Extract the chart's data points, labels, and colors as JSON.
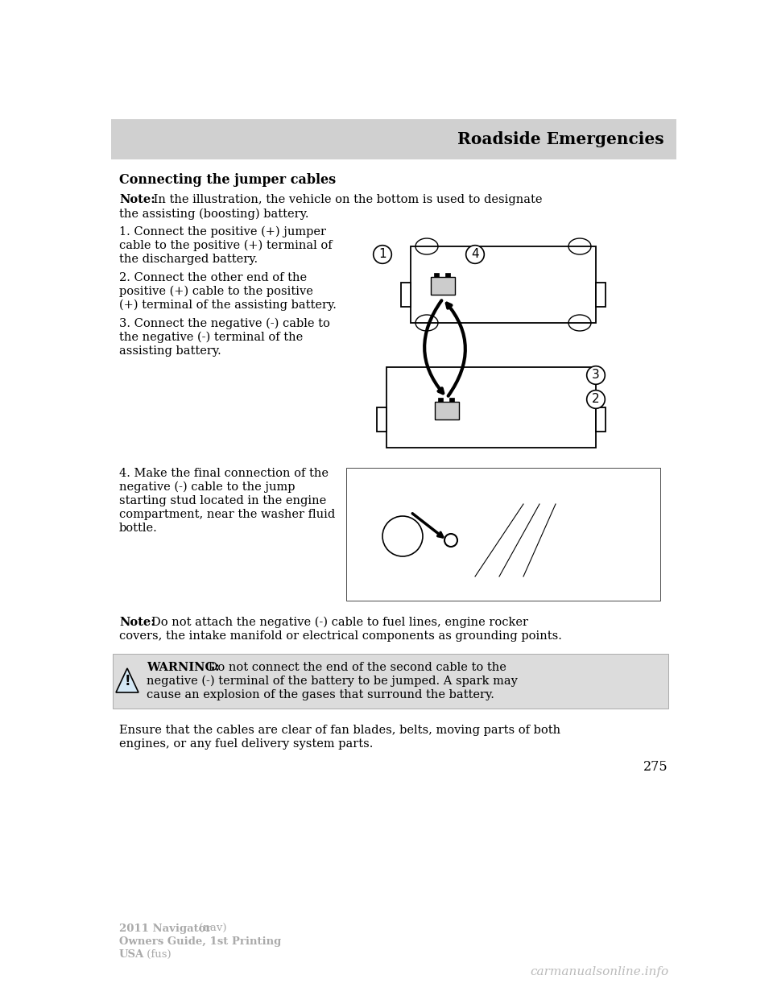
{
  "page_bg": "#ffffff",
  "header_bg": "#d0d0d0",
  "header_text": "Roadside Emergencies",
  "header_text_color": "#000000",
  "section_title": "Connecting the jumper cables",
  "note1_bold": "Note:",
  "note1_rest": " In the illustration, the vehicle on the bottom is used to designate\nthe assisting (boosting) battery.",
  "step1": "1. Connect the positive (+) jumper\ncable to the positive (+) terminal of\nthe discharged battery.",
  "step2": "2. Connect the other end of the\npositive (+) cable to the positive\n(+) terminal of the assisting battery.",
  "step3": "3. Connect the negative (-) cable to\nthe negative (-) terminal of the\nassisting battery.",
  "step4": "4. Make the final connection of the\nnegative (-) cable to the jump\nstarting stud located in the engine\ncompartment, near the washer fluid\nbottle.",
  "note2_bold": "Note:",
  "note2_rest": " Do not attach the negative (-) cable to fuel lines, engine rocker\ncovers, the intake manifold or electrical components as grounding points.",
  "warning_bold": "WARNING:",
  "warning_line1": " Do not connect the end of the second cable to the",
  "warning_line2": "negative (-) terminal of the battery to be jumped. A spark may",
  "warning_line3": "cause an explosion of the gases that surround the battery.",
  "warning_bg": "#dcdcdc",
  "ensure_text": "Ensure that the cables are clear of fan blades, belts, moving parts of both\nengines, or any fuel delivery system parts.",
  "page_number": "275",
  "footer_bold1": "2011 Navigator",
  "footer_reg1": " (nav)",
  "footer_bold2": "Owners Guide, 1st Printing",
  "footer_bold3": "USA",
  "footer_reg3": " (fus)",
  "watermark": "carmanualsonline.info",
  "text_color": "#000000",
  "gray_color": "#aaaaaa",
  "body_fs": 10.5,
  "note_fs": 10.5,
  "title_fs": 11.5,
  "header_fs": 14.5,
  "footer_fs": 9.5
}
